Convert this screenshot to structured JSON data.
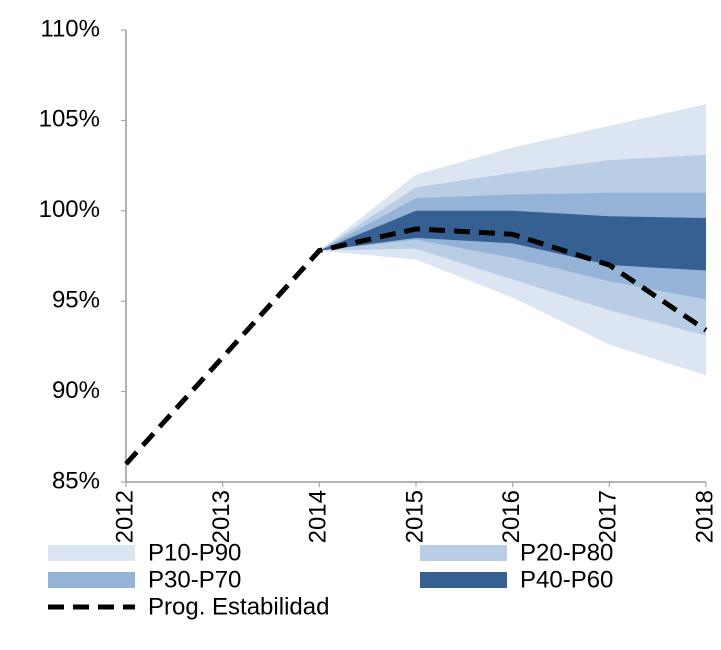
{
  "chart_data": {
    "type": "fan",
    "x": [
      "2012",
      "2013",
      "2014",
      "2015",
      "2016",
      "2017",
      "2018"
    ],
    "ylim": [
      85,
      110
    ],
    "yticks": [
      {
        "value": 85,
        "label": "85%"
      },
      {
        "value": 90,
        "label": "90%"
      },
      {
        "value": 95,
        "label": "95%"
      },
      {
        "value": 100,
        "label": "100%"
      },
      {
        "value": 105,
        "label": "105%"
      },
      {
        "value": 110,
        "label": "110%"
      }
    ],
    "bands": [
      {
        "name": "P10-P90",
        "color": "#dce6f2",
        "low": [
          null,
          null,
          97.8,
          97.3,
          95.2,
          92.6,
          90.9
        ],
        "high": [
          null,
          null,
          97.8,
          102.0,
          103.5,
          104.7,
          105.9
        ]
      },
      {
        "name": "P20-P80",
        "color": "#b9cde5",
        "low": [
          null,
          null,
          97.8,
          97.9,
          96.2,
          94.5,
          93.1
        ],
        "high": [
          null,
          null,
          97.8,
          101.3,
          102.1,
          102.8,
          103.1
        ]
      },
      {
        "name": "P30-P70",
        "color": "#95b3d7",
        "low": [
          null,
          null,
          97.8,
          98.4,
          97.4,
          96.1,
          95.1
        ],
        "high": [
          null,
          null,
          97.8,
          100.7,
          100.9,
          101.0,
          101.0
        ]
      },
      {
        "name": "P40-P60",
        "color": "#366092",
        "low": [
          null,
          null,
          97.8,
          98.5,
          98.2,
          97.0,
          96.7
        ],
        "high": [
          null,
          null,
          97.8,
          100.0,
          100.0,
          99.7,
          99.6
        ]
      }
    ],
    "line": {
      "name": "Prog. Estabilidad",
      "color": "#000000",
      "values": [
        86.0,
        91.9,
        97.8,
        99.0,
        98.7,
        97.0,
        93.4
      ]
    }
  }
}
